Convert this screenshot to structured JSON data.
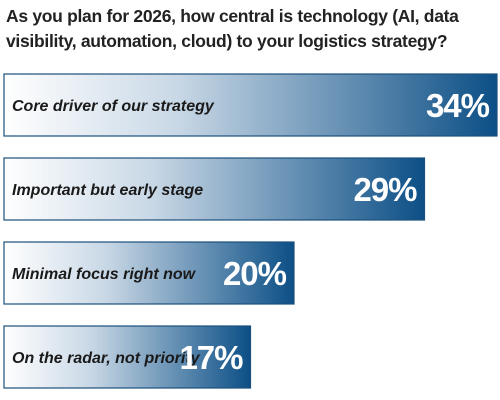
{
  "chart_data": {
    "type": "bar",
    "orientation": "horizontal",
    "title": "As you plan for 2026, how central is technology (AI, data visibility, automation, cloud) to your logistics strategy?",
    "categories": [
      "Core driver of our strategy",
      "Important but early stage",
      "Minimal focus right now",
      "On the radar, not priority"
    ],
    "values": [
      34,
      29,
      20,
      17
    ],
    "value_labels": [
      "34%",
      "29%",
      "20%",
      "17%"
    ],
    "unit": "%",
    "xlim": [
      0,
      34
    ],
    "grid": false,
    "legend": "none",
    "colors": {
      "bar_start": "#ffffff",
      "bar_end": "#0c4f86",
      "bar_border": "#1b4f7c",
      "value_text": "#ffffff",
      "label_text": "#1a1a1a"
    }
  }
}
